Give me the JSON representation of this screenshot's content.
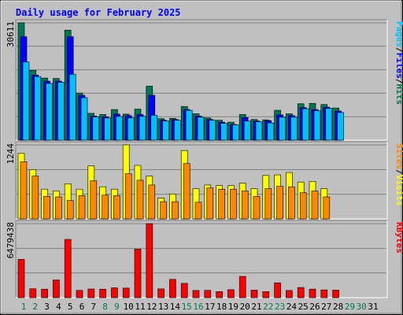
{
  "chart_data": {
    "type": "bar",
    "title": "Daily usage for February 2025",
    "categories": [
      "1",
      "2",
      "3",
      "4",
      "5",
      "6",
      "7",
      "8",
      "9",
      "10",
      "11",
      "12",
      "13",
      "14",
      "15",
      "16",
      "17",
      "18",
      "19",
      "20",
      "21",
      "22",
      "23",
      "24",
      "25",
      "26",
      "27",
      "28",
      "29",
      "30",
      "31"
    ],
    "weekend_days": [
      "1",
      "2",
      "8",
      "9",
      "15",
      "16",
      "22",
      "23",
      "29",
      "30"
    ],
    "panels": [
      {
        "name": "hits-files-pages",
        "ymax_label": "30611",
        "ylim": [
          0,
          30611
        ],
        "grid": true,
        "legend": [
          "Pages",
          "/",
          "Files",
          "/",
          "Hits"
        ],
        "series": [
          {
            "name": "Hits",
            "color": "#007755",
            "values": [
              30611,
              18200,
              16200,
              16100,
              28700,
              12300,
              7000,
              6700,
              8000,
              6800,
              8100,
              14100,
              5600,
              5700,
              8800,
              6900,
              5800,
              5200,
              4700,
              6700,
              5400,
              5300,
              7800,
              6900,
              9500,
              9600,
              9300,
              8400,
              0,
              0,
              0
            ]
          },
          {
            "name": "Files",
            "color": "#0000ff",
            "values": [
              27000,
              17000,
              15400,
              15400,
              27000,
              11700,
              6300,
              6100,
              6800,
              6400,
              6700,
              11700,
              5200,
              5400,
              8000,
              6300,
              5400,
              4700,
              4100,
              5900,
              5000,
              5100,
              6600,
              6400,
              8500,
              8000,
              8600,
              7600,
              0,
              0,
              0
            ]
          },
          {
            "name": "Pages",
            "color": "#00c0ff",
            "values": [
              20400,
              16600,
              14800,
              15100,
              17200,
              11100,
              6100,
              5800,
              6200,
              5800,
              6200,
              6500,
              5000,
              5200,
              7800,
              6000,
              5200,
              4400,
              4000,
              5000,
              4800,
              4500,
              6000,
              6000,
              8200,
              7700,
              8300,
              7200,
              0,
              0,
              0
            ]
          }
        ]
      },
      {
        "name": "visits-sites",
        "ymax_label": "1244",
        "ylim": [
          0,
          1244
        ],
        "grid": true,
        "legend": [
          "Sites",
          "/",
          "Visits"
        ],
        "series": [
          {
            "name": "Visits",
            "color": "#ffff00",
            "values": [
              1100,
              830,
              500,
              470,
              590,
              500,
              890,
              540,
              500,
              1244,
              900,
              720,
              350,
              420,
              1150,
              510,
              570,
              560,
              560,
              600,
              510,
              730,
              740,
              780,
              620,
              630,
              510,
              0,
              0,
              0,
              0
            ]
          },
          {
            "name": "Sites",
            "color": "#ff8800",
            "values": [
              960,
              720,
              380,
              370,
              310,
              390,
              640,
              400,
              390,
              760,
              650,
              570,
              290,
              290,
              930,
              280,
              520,
              500,
              500,
              470,
              380,
              510,
              550,
              540,
              440,
              470,
              370,
              0,
              0,
              0,
              0
            ]
          }
        ]
      },
      {
        "name": "kbytes",
        "ymax_label": "6479438",
        "ylim": [
          0,
          6479438
        ],
        "grid": true,
        "legend": [
          "KBytes"
        ],
        "series": [
          {
            "name": "KBytes",
            "color": "#ff0000",
            "values": [
              3350000,
              780000,
              740000,
              1550000,
              5100000,
              640000,
              760000,
              740000,
              860000,
              840000,
              4250000,
              6479438,
              770000,
              1600000,
              1250000,
              630000,
              640000,
              530000,
              700000,
              1860000,
              660000,
              530000,
              1300000,
              630000,
              890000,
              750000,
              680000,
              660000,
              0,
              0,
              0
            ]
          }
        ]
      }
    ]
  }
}
